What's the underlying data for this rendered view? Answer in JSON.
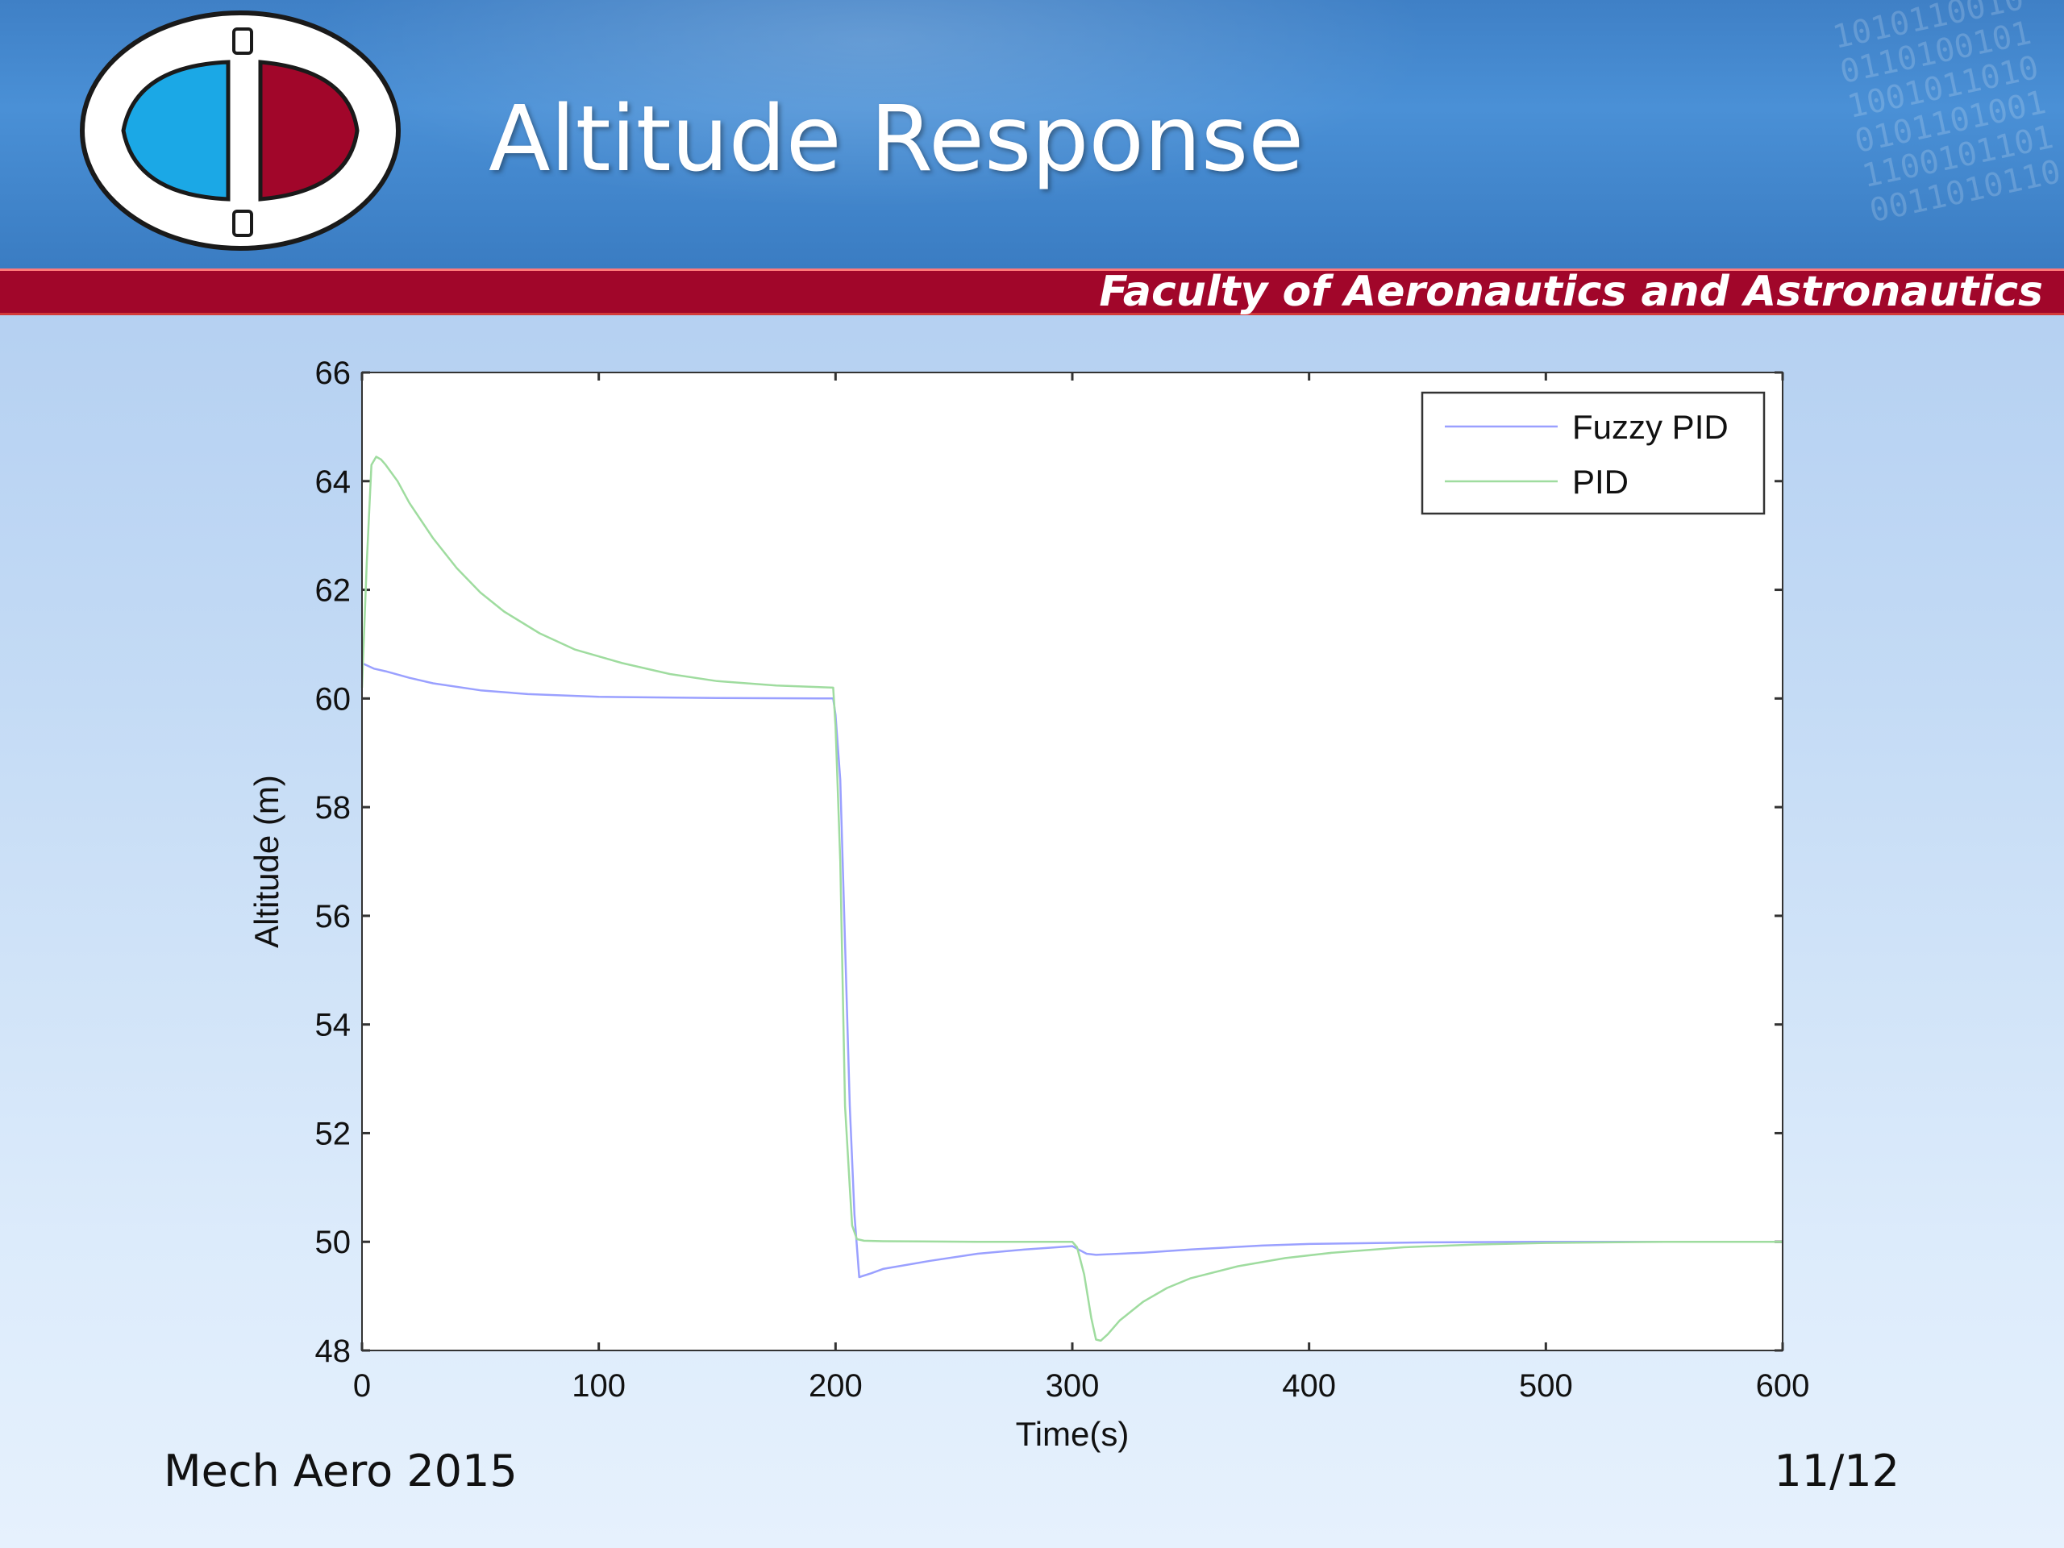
{
  "slide": {
    "title": "Altitude Response",
    "faculty": "Faculty of Aeronautics and Astronautics",
    "footer_left": "Mech Aero 2015",
    "page_number": "11/12"
  },
  "colors": {
    "header_blue": "#3f80c6",
    "faculty_bar": "#a1062a",
    "logo_cyan": "#1ba8e6",
    "logo_red": "#a1062a",
    "fuzzy_pid_line": "#9aa0ff",
    "pid_line": "#9fdc9f"
  },
  "chart_data": {
    "type": "line",
    "title": "",
    "xlabel": "Time(s)",
    "ylabel": "Altitude (m)",
    "xlim": [
      0,
      600
    ],
    "ylim": [
      48,
      66
    ],
    "xticks": [
      "0",
      "100",
      "200",
      "300",
      "400",
      "500",
      "600"
    ],
    "yticks": [
      "48",
      "50",
      "52",
      "54",
      "56",
      "58",
      "60",
      "62",
      "64",
      "66"
    ],
    "grid": false,
    "legend_position": "top-right",
    "series": [
      {
        "name": "Fuzzy PID",
        "color": "#9aa0ff",
        "x": [
          0,
          5,
          10,
          20,
          30,
          50,
          70,
          100,
          150,
          199,
          200,
          202,
          204,
          206,
          208,
          210,
          215,
          220,
          240,
          260,
          280,
          300,
          303,
          306,
          310,
          330,
          350,
          380,
          400,
          450,
          500,
          600
        ],
        "y": [
          60.65,
          60.55,
          60.5,
          60.38,
          60.28,
          60.15,
          60.08,
          60.03,
          60.01,
          60.0,
          59.7,
          58.5,
          55.5,
          52.5,
          50.5,
          49.35,
          49.42,
          49.5,
          49.65,
          49.78,
          49.86,
          49.92,
          49.85,
          49.78,
          49.76,
          49.8,
          49.86,
          49.93,
          49.96,
          49.99,
          50.0,
          50.0
        ]
      },
      {
        "name": "PID",
        "color": "#9fdc9f",
        "x": [
          0,
          2,
          4,
          6,
          8,
          10,
          15,
          20,
          30,
          40,
          50,
          60,
          75,
          90,
          110,
          130,
          150,
          175,
          199,
          200,
          202,
          204,
          206,
          207,
          209,
          212,
          220,
          260,
          300,
          302,
          305,
          308,
          310,
          312,
          315,
          320,
          330,
          340,
          350,
          370,
          390,
          410,
          440,
          470,
          500,
          550,
          600
        ],
        "y": [
          60.2,
          62.5,
          64.3,
          64.45,
          64.4,
          64.3,
          64.0,
          63.6,
          62.95,
          62.4,
          61.95,
          61.6,
          61.2,
          60.9,
          60.65,
          60.45,
          60.32,
          60.24,
          60.2,
          59.5,
          57.0,
          52.5,
          51.0,
          50.3,
          50.05,
          50.02,
          50.01,
          50.0,
          50.0,
          49.9,
          49.4,
          48.6,
          48.2,
          48.18,
          48.3,
          48.55,
          48.9,
          49.15,
          49.33,
          49.55,
          49.7,
          49.8,
          49.9,
          49.95,
          49.98,
          50.0,
          50.0
        ]
      }
    ]
  }
}
